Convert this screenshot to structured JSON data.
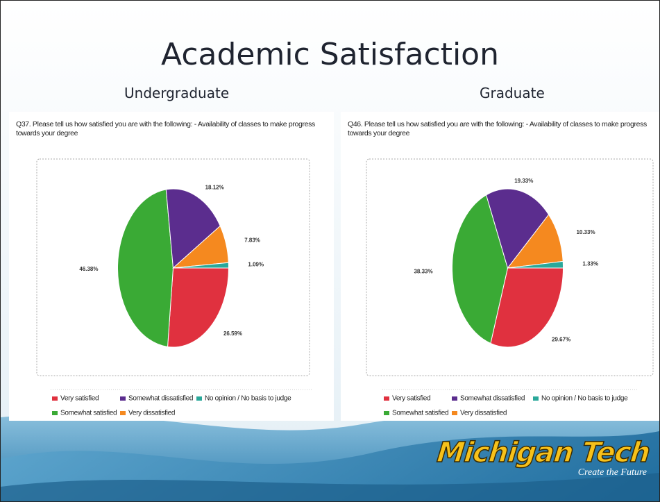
{
  "title": "Academic Satisfaction",
  "logo": {
    "name": "Michigan Tech",
    "tagline": "Create the Future"
  },
  "chart_data": [
    {
      "type": "pie",
      "subtitle": "Undergraduate",
      "title": "Q37. Please tell us how satisfied you are with the following: - Availability of classes to make progress towards your degree",
      "categories": [
        "Very satisfied",
        "Somewhat satisfied",
        "Somewhat dissatisfied",
        "Very dissatisfied",
        "No opinion / No basis to judge"
      ],
      "values": [
        26.59,
        46.38,
        18.12,
        7.83,
        1.09
      ],
      "value_labels": [
        "26.59%",
        "46.38%",
        "18.12%",
        "7.83%",
        "1.09%"
      ],
      "colors": [
        "#e0313f",
        "#3aaa35",
        "#5b2d8e",
        "#f5891f",
        "#2aa89a"
      ],
      "legend": "bottom"
    },
    {
      "type": "pie",
      "subtitle": "Graduate",
      "title": "Q46. Please tell us how satisfied you are with the following: - Availability of classes to make progress towards your degree",
      "categories": [
        "Very satisfied",
        "Somewhat satisfied",
        "Somewhat dissatisfied",
        "Very dissatisfied",
        "No opinion / No basis to judge"
      ],
      "values": [
        29.67,
        38.33,
        19.33,
        10.33,
        1.33
      ],
      "value_labels": [
        "29.67%",
        "38.33%",
        "19.33%",
        "10.33%",
        "1.33%"
      ],
      "colors": [
        "#e0313f",
        "#3aaa35",
        "#5b2d8e",
        "#f5891f",
        "#2aa89a"
      ],
      "legend": "bottom"
    }
  ]
}
